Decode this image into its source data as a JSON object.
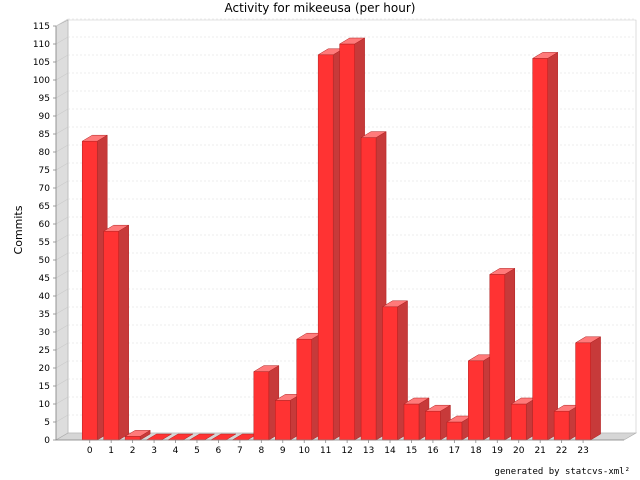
{
  "chart_data": {
    "type": "bar",
    "title": "Activity for mikeeusa (per hour)",
    "xlabel": "",
    "ylabel": "Commits",
    "ylim": [
      0,
      115
    ],
    "ytick_step": 5,
    "grid": true,
    "categories": [
      "0",
      "1",
      "2",
      "3",
      "4",
      "5",
      "6",
      "7",
      "8",
      "9",
      "10",
      "11",
      "12",
      "13",
      "14",
      "15",
      "16",
      "17",
      "18",
      "19",
      "20",
      "21",
      "22",
      "23"
    ],
    "values": [
      83,
      58,
      1,
      0,
      0,
      0,
      0,
      0,
      19,
      11,
      28,
      107,
      110,
      84,
      37,
      10,
      8,
      5,
      22,
      46,
      10,
      106,
      8,
      27
    ],
    "bar_color": "#ff3333",
    "bar_side_color": "#c73a3a",
    "bar_top_color": "#ff7a7a"
  },
  "footer": {
    "text": "generated by statcvs-xml²"
  }
}
